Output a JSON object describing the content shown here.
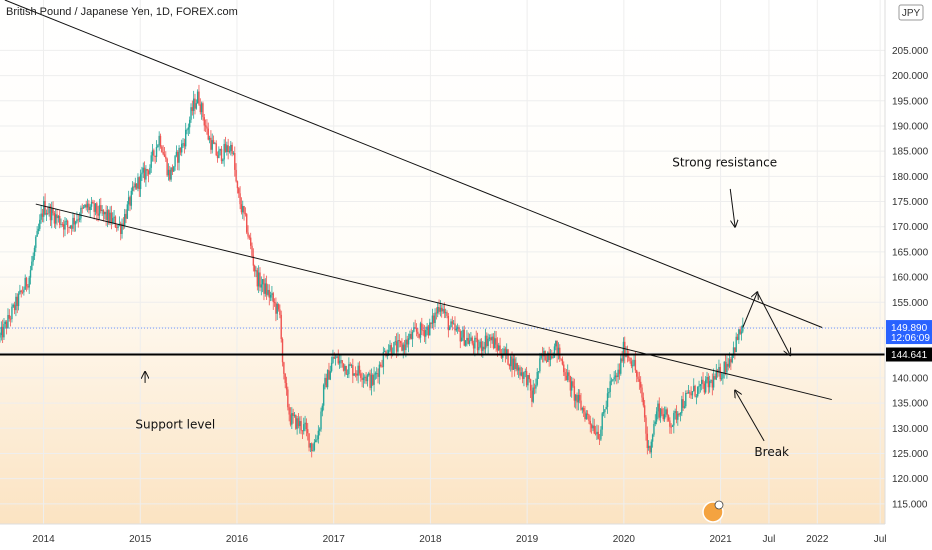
{
  "chart_data": {
    "type": "candlestick",
    "title": "British Pound / Japanese Yen, 1D, FOREX.com",
    "currency_badge": "JPY",
    "ylim": [
      111,
      215
    ],
    "xlim": [
      2013.55,
      2022.7
    ],
    "y_ticks": [
      "115.000",
      "120.000",
      "125.000",
      "130.000",
      "135.000",
      "140.000",
      "145.000",
      "150.000",
      "155.000",
      "160.000",
      "165.000",
      "170.000",
      "175.000",
      "180.000",
      "185.000",
      "190.000",
      "195.000",
      "200.000",
      "205.000"
    ],
    "y_tick_values": [
      115,
      120,
      125,
      130,
      135,
      140,
      145,
      150,
      155,
      160,
      165,
      170,
      175,
      180,
      185,
      190,
      195,
      200,
      205
    ],
    "x_ticks": [
      {
        "label": "2014",
        "t": 2014.0
      },
      {
        "label": "2015",
        "t": 2015.0
      },
      {
        "label": "2016",
        "t": 2016.0
      },
      {
        "label": "2017",
        "t": 2017.0
      },
      {
        "label": "2018",
        "t": 2018.0
      },
      {
        "label": "2019",
        "t": 2019.0
      },
      {
        "label": "2020",
        "t": 2020.0
      },
      {
        "label": "2021",
        "t": 2021.0
      },
      {
        "label": "Jul",
        "t": 2021.5
      },
      {
        "label": "2022",
        "t": 2022.0
      },
      {
        "label": "Jul",
        "t": 2022.65
      }
    ],
    "price_path": [
      [
        2013.55,
        148
      ],
      [
        2013.7,
        154
      ],
      [
        2013.85,
        160
      ],
      [
        2014.0,
        174
      ],
      [
        2014.25,
        170
      ],
      [
        2014.45,
        174
      ],
      [
        2014.65,
        172
      ],
      [
        2014.8,
        170
      ],
      [
        2014.95,
        178
      ],
      [
        2015.1,
        182
      ],
      [
        2015.2,
        188
      ],
      [
        2015.3,
        180
      ],
      [
        2015.45,
        187
      ],
      [
        2015.55,
        194
      ],
      [
        2015.6,
        196
      ],
      [
        2015.7,
        188
      ],
      [
        2015.8,
        184
      ],
      [
        2015.95,
        186
      ],
      [
        2016.0,
        177
      ],
      [
        2016.1,
        170
      ],
      [
        2016.2,
        160
      ],
      [
        2016.35,
        156
      ],
      [
        2016.45,
        152
      ],
      [
        2016.48,
        140
      ],
      [
        2016.55,
        132
      ],
      [
        2016.7,
        130
      ],
      [
        2016.78,
        126
      ],
      [
        2016.85,
        130
      ],
      [
        2016.9,
        138
      ],
      [
        2017.0,
        144
      ],
      [
        2017.15,
        142
      ],
      [
        2017.3,
        141
      ],
      [
        2017.4,
        139
      ],
      [
        2017.55,
        146
      ],
      [
        2017.7,
        146
      ],
      [
        2017.85,
        149
      ],
      [
        2018.0,
        150
      ],
      [
        2018.1,
        155
      ],
      [
        2018.2,
        150
      ],
      [
        2018.35,
        148
      ],
      [
        2018.5,
        146
      ],
      [
        2018.6,
        148
      ],
      [
        2018.75,
        145
      ],
      [
        2018.9,
        142
      ],
      [
        2019.0,
        140
      ],
      [
        2019.05,
        136
      ],
      [
        2019.15,
        144
      ],
      [
        2019.3,
        146
      ],
      [
        2019.4,
        141
      ],
      [
        2019.5,
        136
      ],
      [
        2019.6,
        133
      ],
      [
        2019.7,
        130
      ],
      [
        2019.75,
        129
      ],
      [
        2019.85,
        138
      ],
      [
        2019.95,
        141
      ],
      [
        2020.0,
        146
      ],
      [
        2020.1,
        143
      ],
      [
        2020.2,
        135
      ],
      [
        2020.25,
        125
      ],
      [
        2020.35,
        134
      ],
      [
        2020.5,
        131
      ],
      [
        2020.6,
        135
      ],
      [
        2020.7,
        137
      ],
      [
        2020.8,
        138
      ],
      [
        2020.9,
        139
      ],
      [
        2021.0,
        141
      ],
      [
        2021.1,
        144
      ],
      [
        2021.2,
        149
      ],
      [
        2021.23,
        150
      ]
    ],
    "last_price": {
      "label": "149.890",
      "value": 149.89,
      "countdown": "12:06:09",
      "color": "#2962ff"
    },
    "support_level": {
      "label": "144.641",
      "value": 144.641,
      "color": "#000000"
    },
    "trendlines": [
      {
        "name": "upper-resistance-line",
        "p1": [
          2013.6,
          215
        ],
        "p2": [
          2022.05,
          150
        ]
      },
      {
        "name": "lower-trendline",
        "p1": [
          2013.92,
          174.5
        ],
        "p2": [
          2022.15,
          135.7
        ]
      }
    ],
    "projection_path": [
      [
        2021.23,
        150
      ],
      [
        2021.38,
        157
      ],
      [
        2021.72,
        144.5
      ]
    ],
    "break_arrow": {
      "from": [
        2021.45,
        127.5
      ],
      "to": [
        2021.15,
        137.5
      ]
    },
    "resistance_arrow": {
      "from": [
        2021.1,
        177.5
      ],
      "to": [
        2021.15,
        170
      ]
    },
    "support_arrow": {
      "from": [
        2015.05,
        139
      ],
      "to": [
        2015.05,
        141.2
      ]
    },
    "annotations": [
      {
        "name": "strong-resistance-label",
        "text": "Strong resistance",
        "t": 2020.5,
        "v": 182
      },
      {
        "name": "support-level-label",
        "text": "Support level",
        "t": 2014.95,
        "v": 130
      },
      {
        "name": "break-label",
        "text": "Break",
        "t": 2021.35,
        "v": 124.5
      }
    ],
    "colors": {
      "up": "#26a69a",
      "down": "#ef5350",
      "grid": "#eeeeee",
      "background_lower": "#fbe3c2"
    }
  }
}
